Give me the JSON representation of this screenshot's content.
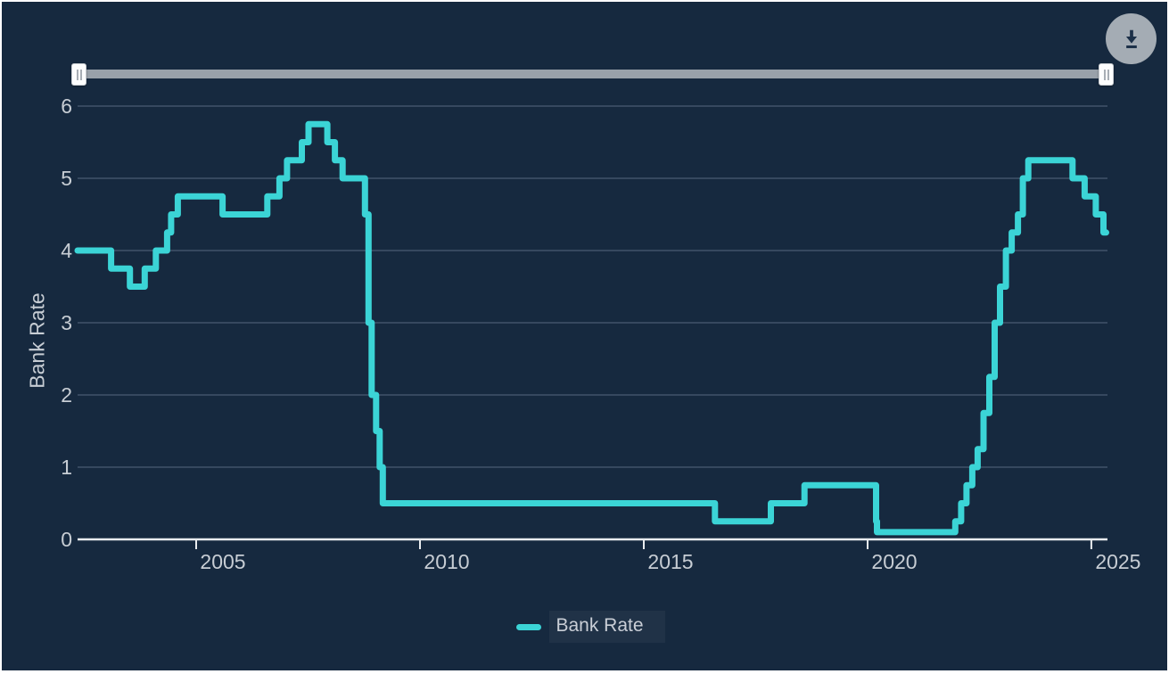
{
  "page": {
    "background_color": "#16293F",
    "accent_color": "#3BD4D6",
    "text_color": "#C7CDD4"
  },
  "toolbar": {
    "icons": {
      "download": "arrow-down-to-line",
      "slider_grip": "vertical-grip-lines"
    }
  },
  "chart_data": {
    "type": "line",
    "step": true,
    "title": "",
    "xlabel": "",
    "ylabel": "Bank Rate",
    "grid": true,
    "legend_position": "bottom-center",
    "xlim": [
      2002.35,
      2025.36
    ],
    "ylim": [
      0,
      6
    ],
    "x_ticks": [
      2005,
      2010,
      2015,
      2020,
      2025
    ],
    "y_ticks": [
      0,
      1,
      2,
      3,
      4,
      5,
      6
    ],
    "series": [
      {
        "name": "Bank Rate",
        "color": "#3BD4D6",
        "points": [
          [
            2002.35,
            4.0
          ],
          [
            2003.1,
            3.75
          ],
          [
            2003.52,
            3.5
          ],
          [
            2003.85,
            3.75
          ],
          [
            2004.1,
            4.0
          ],
          [
            2004.35,
            4.25
          ],
          [
            2004.44,
            4.5
          ],
          [
            2004.59,
            4.75
          ],
          [
            2005.59,
            4.5
          ],
          [
            2006.59,
            4.75
          ],
          [
            2006.86,
            5.0
          ],
          [
            2007.03,
            5.25
          ],
          [
            2007.36,
            5.5
          ],
          [
            2007.51,
            5.75
          ],
          [
            2007.93,
            5.5
          ],
          [
            2008.1,
            5.25
          ],
          [
            2008.27,
            5.0
          ],
          [
            2008.77,
            4.5
          ],
          [
            2008.85,
            3.0
          ],
          [
            2008.92,
            2.0
          ],
          [
            2009.02,
            1.5
          ],
          [
            2009.1,
            1.0
          ],
          [
            2009.17,
            0.5
          ],
          [
            2016.59,
            0.25
          ],
          [
            2017.84,
            0.5
          ],
          [
            2018.59,
            0.75
          ],
          [
            2020.19,
            0.25
          ],
          [
            2020.21,
            0.1
          ],
          [
            2021.96,
            0.25
          ],
          [
            2022.09,
            0.5
          ],
          [
            2022.21,
            0.75
          ],
          [
            2022.34,
            1.0
          ],
          [
            2022.46,
            1.25
          ],
          [
            2022.59,
            1.75
          ],
          [
            2022.72,
            2.25
          ],
          [
            2022.84,
            3.0
          ],
          [
            2022.96,
            3.5
          ],
          [
            2023.09,
            4.0
          ],
          [
            2023.22,
            4.25
          ],
          [
            2023.36,
            4.5
          ],
          [
            2023.47,
            5.0
          ],
          [
            2023.59,
            5.25
          ],
          [
            2024.58,
            5.0
          ],
          [
            2024.85,
            4.75
          ],
          [
            2025.1,
            4.5
          ],
          [
            2025.27,
            4.25
          ]
        ],
        "end_x": 2025.33
      }
    ]
  }
}
